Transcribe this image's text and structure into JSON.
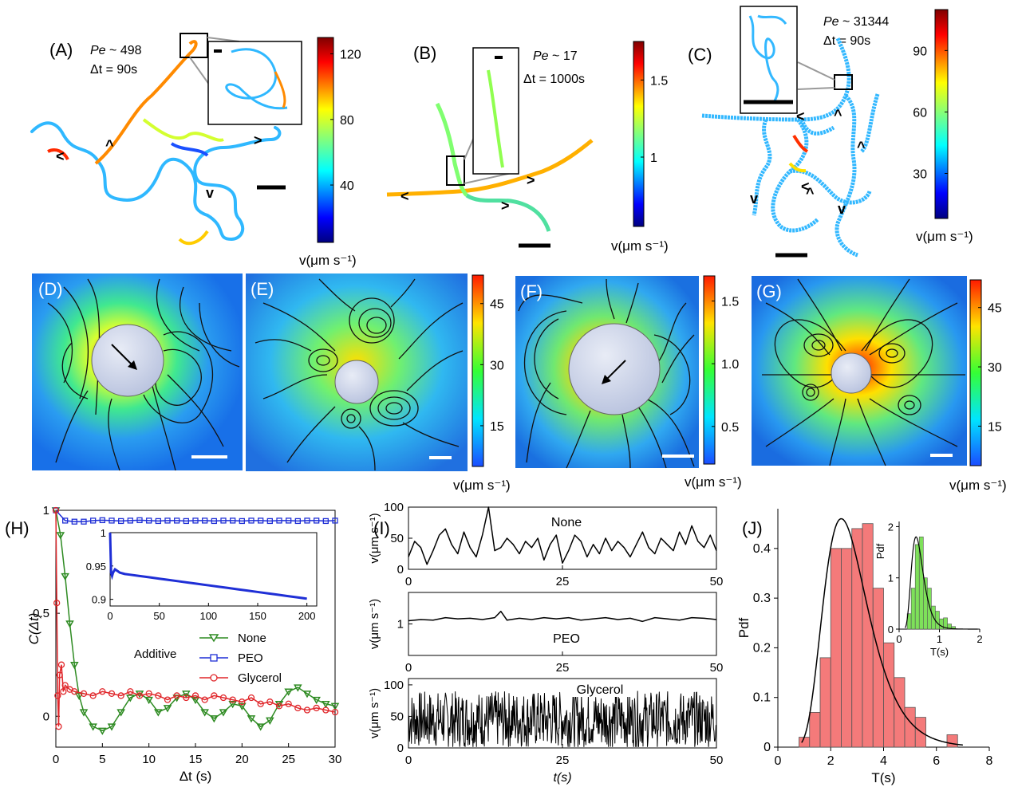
{
  "panels": {
    "A": {
      "label": "(A)",
      "pe_prefix": "Pe",
      "pe_value": " ~ 498",
      "dt": "Δt = 90s"
    },
    "B": {
      "label": "(B)",
      "pe_prefix": "Pe",
      "pe_value": " ~ 17",
      "dt": "Δt = 1000s"
    },
    "C": {
      "label": "(C)",
      "pe_prefix": "Pe",
      "pe_value": " ~ 31344",
      "dt": "Δt = 90s"
    },
    "D": {
      "label": "(D)"
    },
    "E": {
      "label": "(E)"
    },
    "F": {
      "label": "(F)"
    },
    "G": {
      "label": "(G)"
    }
  },
  "colorbars": {
    "A": {
      "ticks": [
        "120",
        "80",
        "40"
      ],
      "values": [
        120,
        80,
        40
      ],
      "range": [
        5,
        130
      ],
      "unit": "v(μm s⁻¹)"
    },
    "B": {
      "ticks": [
        "1.5",
        "1"
      ],
      "values": [
        1.5,
        1.0
      ],
      "range": [
        0.55,
        1.75
      ],
      "unit": "v(μm s⁻¹)"
    },
    "C": {
      "ticks": [
        "90",
        "60",
        "30"
      ],
      "values": [
        90,
        60,
        30
      ],
      "range": [
        8,
        110
      ],
      "unit": "v(μm s⁻¹)"
    },
    "E": {
      "ticks": [
        "45",
        "30",
        "15"
      ],
      "values": [
        45,
        30,
        15
      ],
      "range": [
        5,
        52
      ],
      "unit": "v(μm s⁻¹)"
    },
    "F": {
      "ticks": [
        "1.5",
        "1.0",
        "0.5"
      ],
      "values": [
        1.5,
        1.0,
        0.5
      ],
      "range": [
        0.2,
        1.7
      ],
      "unit": "v(μm s⁻¹)"
    },
    "G": {
      "ticks": [
        "45",
        "30",
        "15"
      ],
      "values": [
        45,
        30,
        15
      ],
      "range": [
        5,
        52
      ],
      "unit": "v(μm s⁻¹)"
    }
  },
  "chart_data": [
    {
      "id": "H",
      "type": "scatter",
      "label": "(H)",
      "xlabel": "Δt (s)",
      "ylabel": "C(Δt)",
      "xlim": [
        0,
        30
      ],
      "ylim": [
        -0.15,
        1.0
      ],
      "xticks": [
        0,
        5,
        10,
        15,
        20,
        25,
        30
      ],
      "yticks": [
        0,
        0.5,
        1
      ],
      "xtick_labels": [
        "0",
        "5",
        "10",
        "15",
        "20",
        "25",
        "30"
      ],
      "ytick_labels": [
        "0",
        "0.5",
        "1"
      ],
      "legend_title": "Additive",
      "series": [
        {
          "name": "None",
          "color": "#2e8b22",
          "marker": "triangle-down",
          "x": [
            0,
            0.5,
            1,
            1.5,
            2,
            2.5,
            3,
            4,
            5,
            6,
            7,
            8,
            9,
            10,
            11,
            12,
            13,
            14,
            15,
            16,
            17,
            18,
            19,
            20,
            21,
            22,
            23,
            24,
            25,
            26,
            27,
            28,
            29,
            30
          ],
          "y": [
            1,
            0.88,
            0.68,
            0.45,
            0.25,
            0.1,
            0.02,
            -0.05,
            -0.07,
            -0.05,
            0.02,
            0.09,
            0.11,
            0.08,
            0.02,
            0.04,
            0.09,
            0.11,
            0.08,
            0.02,
            -0.01,
            0.02,
            0.06,
            0.05,
            -0.01,
            -0.05,
            -0.02,
            0.06,
            0.12,
            0.14,
            0.11,
            0.08,
            0.06,
            0.05
          ]
        },
        {
          "name": "PEO",
          "color": "#1f2fd6",
          "marker": "square",
          "x": [
            0,
            1,
            2,
            3,
            4,
            5,
            6,
            7,
            8,
            9,
            10,
            11,
            12,
            13,
            14,
            15,
            16,
            17,
            18,
            19,
            20,
            21,
            22,
            23,
            24,
            25,
            26,
            27,
            28,
            29,
            30
          ],
          "y": [
            1,
            0.95,
            0.945,
            0.945,
            0.95,
            0.952,
            0.95,
            0.948,
            0.95,
            0.952,
            0.95,
            0.948,
            0.95,
            0.95,
            0.948,
            0.95,
            0.95,
            0.948,
            0.95,
            0.95,
            0.948,
            0.95,
            0.95,
            0.948,
            0.95,
            0.95,
            0.948,
            0.95,
            0.95,
            0.948,
            0.95
          ]
        },
        {
          "name": "Glycerol",
          "color": "#e0262a",
          "marker": "circle",
          "x": [
            0,
            0.1,
            0.2,
            0.3,
            0.4,
            0.6,
            0.8,
            1,
            1.5,
            2,
            3,
            4,
            5,
            6,
            7,
            8,
            9,
            10,
            11,
            12,
            13,
            14,
            15,
            16,
            17,
            18,
            19,
            20,
            21,
            22,
            23,
            24,
            25,
            26,
            27,
            28,
            29,
            30
          ],
          "y": [
            1,
            0.55,
            0.1,
            -0.05,
            0.2,
            0.25,
            0.12,
            0.15,
            0.13,
            0.12,
            0.11,
            0.1,
            0.12,
            0.11,
            0.1,
            0.12,
            0.1,
            0.11,
            0.1,
            0.08,
            0.1,
            0.09,
            0.1,
            0.08,
            0.1,
            0.09,
            0.08,
            0.07,
            0.09,
            0.06,
            0.07,
            0.05,
            0.06,
            0.04,
            0.03,
            0.04,
            0.03,
            0.02
          ]
        }
      ],
      "inset": {
        "type": "scatter",
        "xlim": [
          0,
          210
        ],
        "ylim": [
          0.89,
          1.0
        ],
        "xticks": [
          0,
          50,
          100,
          150,
          200
        ],
        "yticks": [
          0.9,
          0.95,
          1
        ],
        "xtick_labels": [
          "0",
          "50",
          "100",
          "150",
          "200"
        ],
        "ytick_labels": [
          "0.9",
          "0.95",
          "1"
        ],
        "series": [
          {
            "name": "PEO",
            "color": "#1f2fd6",
            "x": [
              0,
              1,
              2,
              3,
              5,
              8,
              10,
              15,
              20,
              30,
              40,
              50,
              60,
              70,
              80,
              90,
              100,
              110,
              120,
              130,
              140,
              150,
              160,
              170,
              180,
              190,
              200
            ],
            "y": [
              1.0,
              0.94,
              0.935,
              0.94,
              0.945,
              0.942,
              0.94,
              0.938,
              0.937,
              0.935,
              0.933,
              0.931,
              0.929,
              0.927,
              0.925,
              0.923,
              0.921,
              0.919,
              0.917,
              0.915,
              0.913,
              0.911,
              0.909,
              0.907,
              0.905,
              0.903,
              0.901
            ]
          }
        ]
      }
    },
    {
      "id": "I",
      "type": "line",
      "label": "(I)",
      "xlabel": "t(s)",
      "subplots": [
        {
          "name": "None",
          "ylabel": "v(μm s⁻¹)",
          "xlim": [
            0,
            50
          ],
          "ylim": [
            0,
            100
          ],
          "xticks": [
            0,
            25,
            50
          ],
          "yticks": [
            0,
            50,
            100
          ],
          "ytick_labels": [
            "0",
            "50",
            "100"
          ],
          "x": [
            0,
            1,
            2,
            3,
            4,
            5,
            6,
            7,
            8,
            9,
            10,
            11,
            12,
            13,
            14,
            15,
            16,
            17,
            18,
            19,
            20,
            21,
            22,
            23,
            24,
            25,
            26,
            27,
            28,
            29,
            30,
            31,
            32,
            33,
            34,
            35,
            36,
            37,
            38,
            39,
            40,
            41,
            42,
            43,
            44,
            45,
            46,
            47,
            48,
            49,
            50
          ],
          "y": [
            20,
            45,
            35,
            8,
            30,
            55,
            65,
            40,
            25,
            60,
            35,
            20,
            55,
            100,
            30,
            35,
            50,
            40,
            25,
            45,
            35,
            50,
            15,
            40,
            55,
            10,
            30,
            55,
            45,
            20,
            40,
            25,
            50,
            30,
            45,
            35,
            20,
            40,
            60,
            35,
            25,
            50,
            40,
            30,
            60,
            40,
            70,
            45,
            35,
            55,
            30
          ]
        },
        {
          "name": "PEO",
          "ylabel": "v(μm s⁻¹)",
          "xlim": [
            0,
            50
          ],
          "ylim": [
            0.5,
            1.5
          ],
          "xticks": [
            0,
            25,
            50
          ],
          "yticks": [
            1
          ],
          "ytick_labels": [
            "1"
          ],
          "x": [
            0,
            2,
            4,
            6,
            8,
            10,
            12,
            14,
            15,
            16,
            18,
            20,
            22,
            24,
            26,
            28,
            30,
            32,
            34,
            36,
            38,
            40,
            42,
            44,
            46,
            48,
            50
          ],
          "y": [
            1.05,
            1.07,
            1.06,
            1.1,
            1.08,
            1.09,
            1.07,
            1.1,
            1.2,
            1.06,
            1.09,
            1.07,
            1.1,
            1.08,
            1.1,
            1.06,
            1.08,
            1.1,
            1.07,
            1.09,
            1.04,
            1.1,
            1.08,
            1.06,
            1.1,
            1.09,
            1.07
          ]
        },
        {
          "name": "Glycerol",
          "ylabel": "v(μm s⁻¹)",
          "xlim": [
            0,
            50
          ],
          "ylim": [
            0,
            110
          ],
          "xticks": [
            0,
            25,
            50
          ],
          "yticks": [
            0,
            50,
            100
          ],
          "ytick_labels": [
            "0",
            "50",
            "100"
          ],
          "noise": true,
          "mean": 45,
          "amplitude": 45
        }
      ],
      "xtick_labels": [
        "0",
        "25",
        "50"
      ]
    },
    {
      "id": "J",
      "type": "bar",
      "label": "(J)",
      "xlabel": "T(s)",
      "ylabel": "Pdf",
      "xlim": [
        0,
        8
      ],
      "ylim": [
        0,
        0.48
      ],
      "xticks": [
        0,
        2,
        4,
        6,
        8
      ],
      "yticks": [
        0,
        0.1,
        0.2,
        0.3,
        0.4
      ],
      "xtick_labels": [
        "0",
        "2",
        "4",
        "6",
        "8"
      ],
      "ytick_labels": [
        "0",
        "0.1",
        "0.2",
        "0.3",
        "0.4"
      ],
      "bin_edges": [
        0.8,
        1.2,
        1.6,
        2.0,
        2.4,
        2.8,
        3.2,
        3.6,
        4.0,
        4.4,
        4.8,
        5.2,
        5.6,
        6.0,
        6.4,
        6.8
      ],
      "values": [
        0.02,
        0.07,
        0.18,
        0.4,
        0.4,
        0.44,
        0.45,
        0.32,
        0.21,
        0.14,
        0.08,
        0.06,
        0.0,
        0.0,
        0.025
      ],
      "fit": {
        "type": "lognormal",
        "peak_x": 2.4,
        "peak_y": 0.46
      },
      "inset": {
        "type": "bar",
        "xlabel": "T(s)",
        "ylabel": "Pdf",
        "xlim": [
          0,
          2
        ],
        "ylim": [
          0,
          2.1
        ],
        "xticks": [
          0,
          1,
          2
        ],
        "yticks": [
          0,
          1,
          2
        ],
        "xtick_labels": [
          "0",
          "1",
          "2"
        ],
        "ytick_labels": [
          "0",
          "1",
          "2"
        ],
        "bin_edges": [
          0.2,
          0.3,
          0.4,
          0.5,
          0.6,
          0.7,
          0.8,
          0.9,
          1.0,
          1.1,
          1.2,
          1.3,
          1.4
        ],
        "values": [
          0.3,
          0.8,
          1.65,
          1.8,
          1.0,
          0.8,
          0.45,
          0.35,
          0.2,
          0.22,
          0.1,
          0.05
        ],
        "fit": {
          "type": "lognormal",
          "peak_x": 0.42,
          "peak_y": 1.8
        }
      }
    }
  ]
}
